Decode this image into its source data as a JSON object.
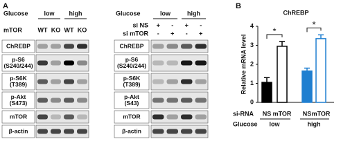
{
  "panel_a": {
    "label": "A",
    "left": {
      "header": [
        {
          "label": "Glucose",
          "values": [
            "low",
            "high"
          ]
        },
        {
          "label": "mTOR",
          "values": [
            "WT",
            "KO",
            "WT",
            "KO"
          ]
        }
      ],
      "blots": [
        [
          "ChREBP"
        ],
        [
          "p-S6",
          "(S240/244)"
        ],
        [
          "p-S6K",
          "(T389)"
        ],
        [
          "p-Akt",
          "(S473)"
        ],
        [
          "mTOR"
        ],
        [
          "β-actin"
        ]
      ]
    },
    "right": {
      "header": [
        {
          "label": "Glucose",
          "values": [
            "low",
            "high"
          ]
        },
        {
          "label": "si NS",
          "values": [
            "+",
            "-",
            "+",
            "-"
          ]
        },
        {
          "label": "si mTOR",
          "values": [
            "-",
            "+",
            "-",
            "+"
          ]
        }
      ],
      "blots": [
        [
          "ChREBP"
        ],
        [
          "p-S6",
          "(S240/244)"
        ],
        [
          "p-S6K",
          "(T389)"
        ],
        [
          "p-Akt",
          "(S43)"
        ],
        [
          "mTOR"
        ],
        [
          "β-actin"
        ]
      ]
    }
  },
  "panel_b": {
    "label": "B"
  },
  "chart_data": {
    "type": "bar",
    "title": "ChREBP",
    "y_label": "Relative mRNA level",
    "category_label": "si-RNA",
    "categories": [
      "NS",
      "mTOR",
      "NS",
      "mTOR"
    ],
    "group_label": "Glucose",
    "groups": [
      "low",
      "high"
    ],
    "values": [
      1.05,
      2.95,
      1.65,
      3.35
    ],
    "errors": [
      0.25,
      0.25,
      0.15,
      0.2
    ],
    "colors": [
      "#000000",
      "#ffffff",
      "#1f7fd0",
      "#ffffff"
    ],
    "edgecolors": [
      "#000000",
      "#000000",
      "#1f7fd0",
      "#1f7fd0"
    ],
    "annotations": [
      "*",
      "*"
    ],
    "ylim": [
      0,
      4
    ],
    "yticks": [
      0,
      1,
      2,
      3,
      4
    ]
  }
}
